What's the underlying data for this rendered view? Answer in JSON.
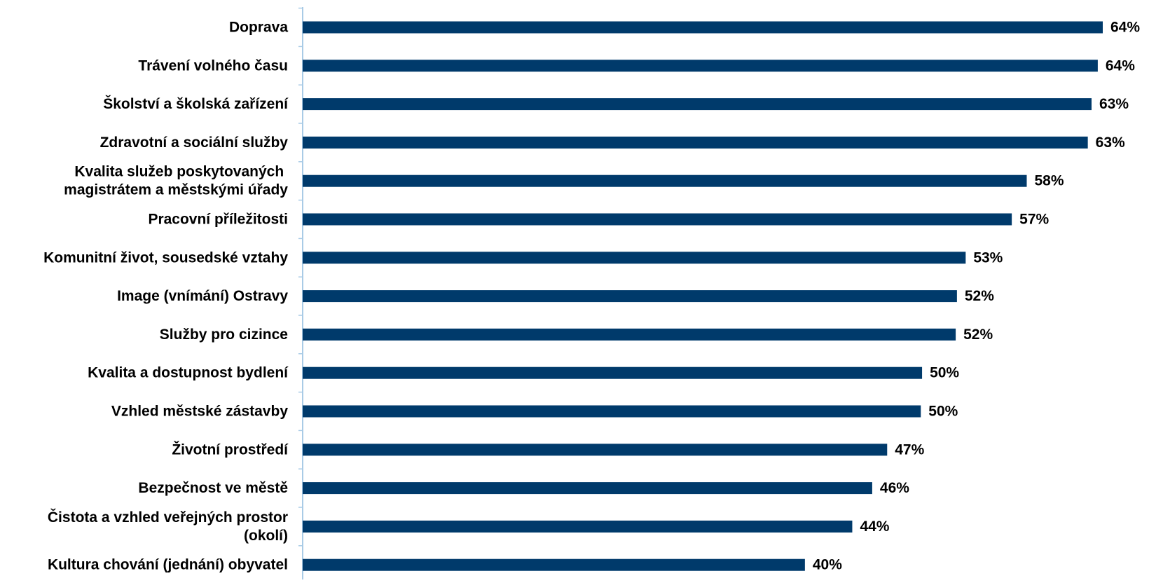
{
  "chart_data": {
    "type": "bar",
    "orientation": "horizontal",
    "categories": [
      "Doprava",
      "Trávení volného času",
      "Školství a školská zařízení",
      "Zdravotní a sociální služby",
      "Kvalita služeb poskytovaných \nmagistrátem a městskými úřady",
      "Pracovní příležitosti",
      "Komunitní život, sousedské vztahy",
      "Image (vnímání) Ostravy",
      "Služby pro cizince",
      "Kvalita a dostupnost bydlení",
      "Vzhled městské zástavby",
      "Životní prostředí",
      "Bezpečnost ve městě",
      "Čistota a vzhled veřejných prostor\n(okolí)",
      "Kultura chování (jednání) obyvatel"
    ],
    "values": [
      64.2,
      63.8,
      63.3,
      63.0,
      58.1,
      56.9,
      53.2,
      52.5,
      52.4,
      49.7,
      49.6,
      46.9,
      45.7,
      44.1,
      40.3
    ],
    "value_labels": [
      "64%",
      "64%",
      "63%",
      "63%",
      "58%",
      "57%",
      "53%",
      "52%",
      "52%",
      "50%",
      "50%",
      "47%",
      "46%",
      "44%",
      "40%"
    ],
    "xlim": [
      0,
      64.2
    ],
    "grid": false,
    "legend": "none",
    "colors": {
      "bar": "#003a6b",
      "axis": "#a9cbe6",
      "text": "#000000"
    }
  }
}
